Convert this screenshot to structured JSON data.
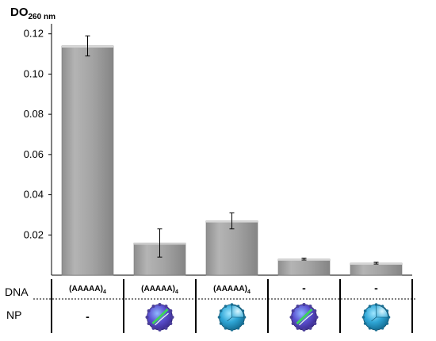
{
  "chart_data": {
    "type": "bar",
    "ylabel": "DO",
    "ylabel_subscript": "260 nm",
    "ylim": [
      0,
      0.125
    ],
    "yticks": [
      "0.02",
      "0.04",
      "0.06",
      "0.08",
      "0.10",
      "0.12"
    ],
    "yticks_values": [
      0.02,
      0.04,
      0.06,
      0.08,
      0.1,
      0.12
    ],
    "values": [
      0.114,
      0.016,
      0.027,
      0.008,
      0.006
    ],
    "errors": [
      0.005,
      0.007,
      0.004,
      0.0005,
      0.0005
    ],
    "bar_color": "#a0a0a0",
    "grid": false,
    "rows": {
      "dna_label": "DNA",
      "np_label": "NP",
      "dna": [
        {
          "text": "(AAAAA)",
          "sub": "4"
        },
        {
          "text": "(AAAAA)",
          "sub": "4"
        },
        {
          "text": "(AAAAA)",
          "sub": "4"
        },
        {
          "text": "-",
          "sub": ""
        },
        {
          "text": "-",
          "sub": ""
        }
      ],
      "np": [
        {
          "text": "-",
          "icon": ""
        },
        {
          "text": "",
          "icon": "textured-nanoparticle-icon"
        },
        {
          "text": "",
          "icon": "cutaway-nanoparticle-icon"
        },
        {
          "text": "",
          "icon": "textured-nanoparticle-icon"
        },
        {
          "text": "",
          "icon": "cutaway-nanoparticle-icon"
        }
      ]
    }
  }
}
